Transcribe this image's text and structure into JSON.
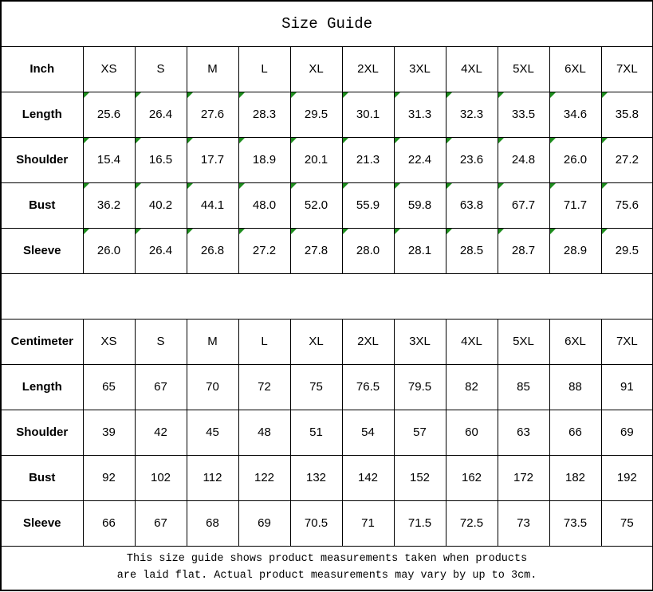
{
  "title": "Size Guide",
  "colors": {
    "border": "#000000",
    "text": "#000000",
    "background": "#ffffff",
    "corner_marker_green": "#1e8e1e"
  },
  "footer": {
    "line1": "This size guide shows product measurements taken when products",
    "line2": "are laid flat. Actual product measurements may vary by up to 3cm."
  },
  "chart_data": [
    {
      "type": "table",
      "unit_label": "Inch",
      "columns": [
        "XS",
        "S",
        "M",
        "L",
        "XL",
        "2XL",
        "3XL",
        "4XL",
        "5XL",
        "6XL",
        "7XL"
      ],
      "has_corner_markers": true,
      "rows": [
        {
          "label": "Length",
          "values": [
            "25.6",
            "26.4",
            "27.6",
            "28.3",
            "29.5",
            "30.1",
            "31.3",
            "32.3",
            "33.5",
            "34.6",
            "35.8"
          ]
        },
        {
          "label": "Shoulder",
          "values": [
            "15.4",
            "16.5",
            "17.7",
            "18.9",
            "20.1",
            "21.3",
            "22.4",
            "23.6",
            "24.8",
            "26.0",
            "27.2"
          ]
        },
        {
          "label": "Bust",
          "values": [
            "36.2",
            "40.2",
            "44.1",
            "48.0",
            "52.0",
            "55.9",
            "59.8",
            "63.8",
            "67.7",
            "71.7",
            "75.6"
          ]
        },
        {
          "label": "Sleeve",
          "values": [
            "26.0",
            "26.4",
            "26.8",
            "27.2",
            "27.8",
            "28.0",
            "28.1",
            "28.5",
            "28.7",
            "28.9",
            "29.5"
          ]
        }
      ]
    },
    {
      "type": "table",
      "unit_label": "Centimeter",
      "columns": [
        "XS",
        "S",
        "M",
        "L",
        "XL",
        "2XL",
        "3XL",
        "4XL",
        "5XL",
        "6XL",
        "7XL"
      ],
      "has_corner_markers": false,
      "rows": [
        {
          "label": "Length",
          "values": [
            "65",
            "67",
            "70",
            "72",
            "75",
            "76.5",
            "79.5",
            "82",
            "85",
            "88",
            "91"
          ]
        },
        {
          "label": "Shoulder",
          "values": [
            "39",
            "42",
            "45",
            "48",
            "51",
            "54",
            "57",
            "60",
            "63",
            "66",
            "69"
          ]
        },
        {
          "label": "Bust",
          "values": [
            "92",
            "102",
            "112",
            "122",
            "132",
            "142",
            "152",
            "162",
            "172",
            "182",
            "192"
          ]
        },
        {
          "label": "Sleeve",
          "values": [
            "66",
            "67",
            "68",
            "69",
            "70.5",
            "71",
            "71.5",
            "72.5",
            "73",
            "73.5",
            "75"
          ]
        }
      ]
    }
  ]
}
